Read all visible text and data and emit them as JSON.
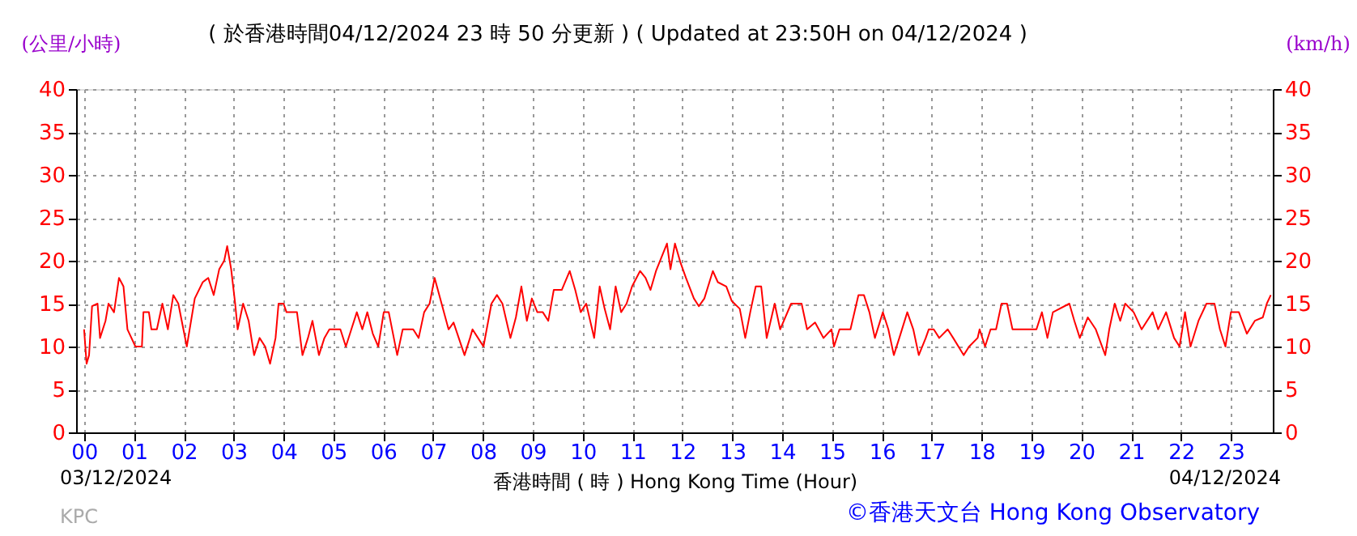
{
  "chart_data": {
    "type": "line",
    "title": "( 於香港時間04/12/2024 23 時 50 分更新 ) ( Updated at 23:50H on 04/12/2024 )",
    "xlabel": "香港時間 ( 時 ) Hong Kong Time (Hour)",
    "ylabel": "(公里/小時)",
    "y2label": "(km/h)",
    "annotations": [
      "03/12/2024",
      "04/12/2024",
      "KPC",
      "©香港天文台 Hong Kong Observatory"
    ],
    "x": [
      0.0,
      0.05,
      0.1,
      0.16,
      0.27,
      0.32,
      0.43,
      0.49,
      0.6,
      0.7,
      0.79,
      0.87,
      1.03,
      1.16,
      1.19,
      1.3,
      1.35,
      1.46,
      1.57,
      1.68,
      1.79,
      1.89,
      2.06,
      2.22,
      2.38,
      2.49,
      2.6,
      2.71,
      2.81,
      2.87,
      2.95,
      3.03,
      3.08,
      3.19,
      3.3,
      3.41,
      3.52,
      3.63,
      3.73,
      3.84,
      3.9,
      4.0,
      4.06,
      4.27,
      4.38,
      4.49,
      4.58,
      4.71,
      4.82,
      4.92,
      5.14,
      5.25,
      5.36,
      5.47,
      5.58,
      5.68,
      5.79,
      5.9,
      6.01,
      6.11,
      6.28,
      6.39,
      6.6,
      6.71,
      6.82,
      6.93,
      7.03,
      7.31,
      7.41,
      7.63,
      7.74,
      7.79,
      7.9,
      8.01,
      8.17,
      8.28,
      8.39,
      8.55,
      8.66,
      8.77,
      8.88,
      8.98,
      9.09,
      9.2,
      9.31,
      9.42,
      9.58,
      9.74,
      9.85,
      9.96,
      10.07,
      10.23,
      10.34,
      10.44,
      10.55,
      10.66,
      10.77,
      10.88,
      10.99,
      11.15,
      11.26,
      11.36,
      11.47,
      11.69,
      11.76,
      11.85,
      11.96,
      12.07,
      12.23,
      12.33,
      12.44,
      12.61,
      12.71,
      12.88,
      12.99,
      13.15,
      13.26,
      13.36,
      13.47,
      13.58,
      13.69,
      13.85,
      13.96,
      14.18,
      14.39,
      14.5,
      14.66,
      14.83,
      14.99,
      15.04,
      15.15,
      15.37,
      15.53,
      15.64,
      15.75,
      15.86,
      16.02,
      16.13,
      16.24,
      16.35,
      16.51,
      16.63,
      16.74,
      16.88,
      16.94,
      17.04,
      17.15,
      17.32,
      17.43,
      17.64,
      17.75,
      17.92,
      17.96,
      18.07,
      18.18,
      18.29,
      18.4,
      18.51,
      18.62,
      19.1,
      19.21,
      19.32,
      19.43,
      19.76,
      19.86,
      19.97,
      20.13,
      20.29,
      20.48,
      20.56,
      20.67,
      20.78,
      20.88,
      21.05,
      21.21,
      21.43,
      21.54,
      21.7,
      21.86,
      21.97,
      22.08,
      22.19,
      22.35,
      22.51,
      22.67,
      22.78,
      22.89,
      23.0,
      23.16,
      23.32,
      23.48,
      23.64,
      23.72,
      23.8
    ],
    "series": [
      {
        "color": "#ff0000",
        "values": [
          12,
          8,
          9,
          14.7,
          15,
          11,
          13,
          15,
          14,
          18,
          17,
          12,
          10,
          10,
          14,
          14,
          12,
          12,
          15,
          12,
          16,
          15,
          10,
          15.6,
          17.5,
          18,
          16,
          19,
          20,
          21.7,
          19,
          15,
          12,
          15,
          13,
          9,
          11,
          10,
          8,
          11,
          15,
          15,
          14,
          14,
          9,
          11,
          13,
          9,
          11,
          12,
          12,
          10,
          12,
          14,
          12,
          14,
          11.5,
          10,
          14,
          14,
          9,
          12,
          12,
          11,
          14,
          15,
          18,
          12,
          12.8,
          9,
          11,
          12,
          11,
          10,
          15,
          16,
          15,
          11,
          13.4,
          17,
          13,
          15.6,
          14,
          14,
          13,
          16.6,
          16.6,
          18.8,
          16.6,
          14,
          15,
          11,
          17,
          14.4,
          12,
          17,
          14,
          15,
          17,
          18.8,
          18,
          16.6,
          18.8,
          22,
          19,
          22,
          19.8,
          18,
          15.6,
          14.7,
          15.6,
          18.8,
          17.5,
          17,
          15.3,
          14.4,
          11,
          14,
          17,
          17,
          11,
          15,
          12,
          15,
          15,
          12,
          12.8,
          11,
          12,
          10,
          12,
          12,
          16,
          16,
          14,
          11,
          14,
          12,
          9,
          11,
          14,
          12,
          9,
          11,
          12,
          12,
          11,
          12,
          11,
          9,
          10,
          11,
          12,
          10,
          12,
          12,
          15,
          15,
          12,
          12,
          14,
          11,
          14,
          15,
          13,
          11,
          13.4,
          12,
          9,
          12,
          15,
          13,
          15,
          14,
          12,
          14,
          12,
          14,
          11,
          10,
          14,
          10,
          13,
          15,
          15,
          12,
          10,
          14,
          14,
          11.5,
          13,
          13.4,
          15,
          16
        ]
      }
    ],
    "xlim": [
      -0.16,
      23.84
    ],
    "xticks": [
      {
        "value": 0,
        "label": "00"
      },
      {
        "value": 1,
        "label": "01"
      },
      {
        "value": 2,
        "label": "02"
      },
      {
        "value": 3,
        "label": "03"
      },
      {
        "value": 4,
        "label": "04"
      },
      {
        "value": 5,
        "label": "05"
      },
      {
        "value": 6,
        "label": "06"
      },
      {
        "value": 7,
        "label": "07"
      },
      {
        "value": 8,
        "label": "08"
      },
      {
        "value": 9,
        "label": "09"
      },
      10,
      11,
      12,
      13,
      14,
      15,
      16,
      17,
      18,
      19,
      20,
      21,
      22,
      23
    ],
    "ylim": [
      0,
      40
    ],
    "yticks": [
      0,
      5,
      10,
      15,
      20,
      25,
      30,
      35,
      40
    ],
    "y2lim": [
      0,
      40
    ],
    "y2ticks": [
      0,
      5,
      10,
      15,
      20,
      25,
      30,
      35,
      40
    ],
    "grid": true
  }
}
